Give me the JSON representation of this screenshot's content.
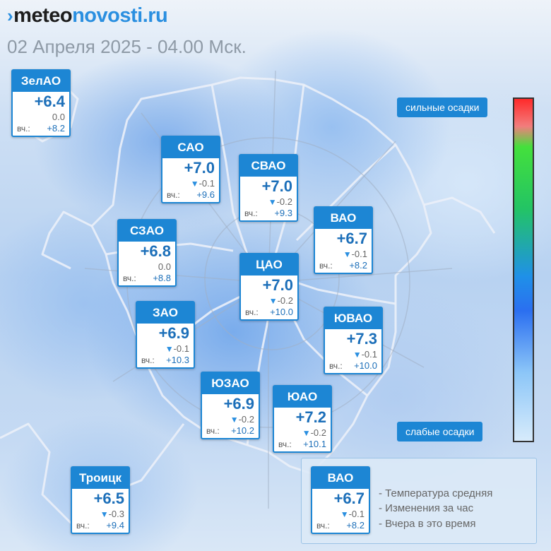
{
  "header": {
    "logo_mark": "›",
    "logo_part1": "meteo",
    "logo_part2": "novosti.ru",
    "datetime": "02 Апреля 2025 - 04.00 Мск."
  },
  "colors": {
    "accent": "#1d86d4",
    "temp_text": "#1c6fb9"
  },
  "districts": [
    {
      "name": "ЗелАО",
      "temp": "+6.4",
      "change": "0.0",
      "trend": "none",
      "yesterday_label": "вч.:",
      "yesterday": "+8.2"
    },
    {
      "name": "САО",
      "temp": "+7.0",
      "change": "-0.1",
      "trend": "down",
      "yesterday_label": "вч.:",
      "yesterday": "+9.6"
    },
    {
      "name": "СВАО",
      "temp": "+7.0",
      "change": "-0.2",
      "trend": "down",
      "yesterday_label": "вч.:",
      "yesterday": "+9.3"
    },
    {
      "name": "ВАО",
      "temp": "+6.7",
      "change": "-0.1",
      "trend": "down",
      "yesterday_label": "вч.:",
      "yesterday": "+8.2"
    },
    {
      "name": "СЗАО",
      "temp": "+6.8",
      "change": "0.0",
      "trend": "none",
      "yesterday_label": "вч.:",
      "yesterday": "+8.8"
    },
    {
      "name": "ЦАО",
      "temp": "+7.0",
      "change": "-0.2",
      "trend": "down",
      "yesterday_label": "вч.:",
      "yesterday": "+10.0"
    },
    {
      "name": "ЗАО",
      "temp": "+6.9",
      "change": "-0.1",
      "trend": "down",
      "yesterday_label": "вч.:",
      "yesterday": "+10.3"
    },
    {
      "name": "ЮВАО",
      "temp": "+7.3",
      "change": "-0.1",
      "trend": "down",
      "yesterday_label": "вч.:",
      "yesterday": "+10.0"
    },
    {
      "name": "ЮЗАО",
      "temp": "+6.9",
      "change": "-0.2",
      "trend": "down",
      "yesterday_label": "вч.:",
      "yesterday": "+10.2"
    },
    {
      "name": "ЮАО",
      "temp": "+7.2",
      "change": "-0.2",
      "trend": "down",
      "yesterday_label": "вч.:",
      "yesterday": "+10.1"
    },
    {
      "name": "Троицк",
      "temp": "+6.5",
      "change": "-0.3",
      "trend": "down",
      "yesterday_label": "вч.:",
      "yesterday": "+9.4"
    }
  ],
  "precip_legend": {
    "heavy": "сильные осадки",
    "light": "слабые осадки"
  },
  "key": {
    "sample": {
      "name": "ВАО",
      "temp": "+6.7",
      "change": "-0.1",
      "trend": "down",
      "yesterday_label": "вч.:",
      "yesterday": "+8.2"
    },
    "lines": [
      "- Температура средняя",
      "- Изменения за час",
      "- Вчера в это время"
    ]
  }
}
